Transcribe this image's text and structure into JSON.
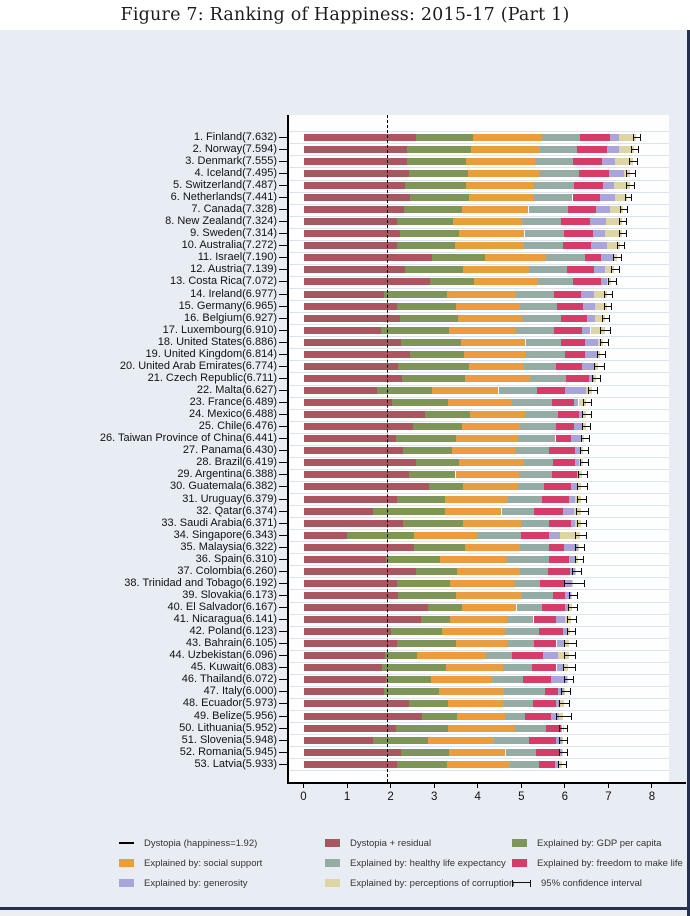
{
  "title": "Figure 7: Ranking of Happiness: 2015-17 (Part 1)",
  "colors": {
    "figure_bg": "#e8edf4",
    "plot_bg": "#fefefe",
    "axis": "#000000",
    "window_chrome": "#26304f"
  },
  "legend": {
    "columns": [
      {
        "items": [
          {
            "icon": "line",
            "color": "#000000",
            "label": "Dystopia (happiness=1.92)"
          },
          {
            "icon": "box",
            "color": "#eb9d3d",
            "label": "Explained by: social support"
          },
          {
            "icon": "box",
            "color": "#a9a5da",
            "label": "Explained by: generosity"
          }
        ]
      },
      {
        "items": [
          {
            "icon": "box",
            "color": "#a8565f",
            "label": "Dystopia + residual"
          },
          {
            "icon": "box",
            "color": "#94aca4",
            "label": "Explained by: healthy life expectancy"
          },
          {
            "icon": "box",
            "color": "#ddd6a4",
            "label": "Explained by: perceptions of corruption"
          }
        ]
      },
      {
        "items": [
          {
            "icon": "box",
            "color": "#7f9457",
            "label": "Explained by: GDP per capita"
          },
          {
            "icon": "box",
            "color": "#d63c68",
            "label": "Explained by: freedom to make life"
          },
          {
            "icon": "ci",
            "color": "#000000",
            "label": "95% confidence interval"
          }
        ]
      }
    ]
  },
  "chart_data": {
    "type": "bar",
    "orientation": "horizontal",
    "stacked": true,
    "title": "Figure 7: Ranking of Happiness: 2015-17 (Part 1)",
    "xlabel": "",
    "ylabel": "",
    "xlim": [
      0,
      8
    ],
    "x_ticks": [
      0,
      1,
      2,
      3,
      4,
      5,
      6,
      7,
      8
    ],
    "grid": "row-separators",
    "dystopia_line": 1.92,
    "ci_note": "95% confidence interval shown as error bar at bar end",
    "segment_order": [
      "dr",
      "gdp",
      "soc",
      "hle",
      "free",
      "gen",
      "corr"
    ],
    "segment_labels": {
      "dr": "Dystopia + residual",
      "gdp": "Explained by: GDP per capita",
      "soc": "Explained by: social support",
      "hle": "Explained by: healthy life expectancy",
      "free": "Explained by: freedom to make life choices",
      "gen": "Explained by: generosity",
      "corr": "Explained by: perceptions of corruption"
    },
    "segment_colors": {
      "dr": "#a8565f",
      "gdp": "#7f9457",
      "soc": "#eb9d3d",
      "hle": "#94aca4",
      "free": "#d63c68",
      "gen": "#a9a5da",
      "corr": "#ddd6a4"
    },
    "countries": [
      {
        "rank": 1,
        "name": "Finland",
        "score": 7.632,
        "ci": 0.07,
        "segments": {
          "dr": 2.585,
          "gdp": 1.305,
          "soc": 1.592,
          "hle": 0.874,
          "free": 0.681,
          "gen": 0.202,
          "corr": 0.393
        }
      },
      {
        "rank": 2,
        "name": "Norway",
        "score": 7.594,
        "ci": 0.07,
        "segments": {
          "dr": 2.383,
          "gdp": 1.456,
          "soc": 1.582,
          "hle": 0.861,
          "free": 0.686,
          "gen": 0.286,
          "corr": 0.34
        }
      },
      {
        "rank": 3,
        "name": "Denmark",
        "score": 7.555,
        "ci": 0.08,
        "segments": {
          "dr": 2.371,
          "gdp": 1.351,
          "soc": 1.59,
          "hle": 0.868,
          "free": 0.683,
          "gen": 0.284,
          "corr": 0.408
        }
      },
      {
        "rank": 4,
        "name": "Iceland",
        "score": 7.495,
        "ci": 0.09,
        "segments": {
          "dr": 2.426,
          "gdp": 1.343,
          "soc": 1.644,
          "hle": 0.914,
          "free": 0.677,
          "gen": 0.353,
          "corr": 0.138
        }
      },
      {
        "rank": 5,
        "name": "Switzerland",
        "score": 7.487,
        "ci": 0.09,
        "segments": {
          "dr": 2.318,
          "gdp": 1.42,
          "soc": 1.549,
          "hle": 0.927,
          "free": 0.66,
          "gen": 0.256,
          "corr": 0.357
        }
      },
      {
        "rank": 6,
        "name": "Netherlands",
        "score": 7.441,
        "ci": 0.06,
        "segments": {
          "dr": 2.448,
          "gdp": 1.361,
          "soc": 1.488,
          "hle": 0.878,
          "free": 0.638,
          "gen": 0.333,
          "corr": 0.295
        }
      },
      {
        "rank": 7,
        "name": "Canada",
        "score": 7.328,
        "ci": 0.07,
        "segments": {
          "dr": 2.305,
          "gdp": 1.33,
          "soc": 1.532,
          "hle": 0.896,
          "free": 0.653,
          "gen": 0.321,
          "corr": 0.291
        }
      },
      {
        "rank": 8,
        "name": "New Zealand",
        "score": 7.324,
        "ci": 0.07,
        "segments": {
          "dr": 2.156,
          "gdp": 1.268,
          "soc": 1.601,
          "hle": 0.876,
          "free": 0.669,
          "gen": 0.365,
          "corr": 0.389
        }
      },
      {
        "rank": 9,
        "name": "Sweden",
        "score": 7.314,
        "ci": 0.07,
        "segments": {
          "dr": 2.218,
          "gdp": 1.355,
          "soc": 1.501,
          "hle": 0.913,
          "free": 0.659,
          "gen": 0.285,
          "corr": 0.383
        }
      },
      {
        "rank": 10,
        "name": "Australia",
        "score": 7.272,
        "ci": 0.07,
        "segments": {
          "dr": 2.139,
          "gdp": 1.34,
          "soc": 1.573,
          "hle": 0.91,
          "free": 0.647,
          "gen": 0.361,
          "corr": 0.302
        }
      },
      {
        "rank": 11,
        "name": "Israel",
        "score": 7.19,
        "ci": 0.08,
        "segments": {
          "dr": 2.945,
          "gdp": 1.229,
          "soc": 1.396,
          "hle": 0.891,
          "free": 0.371,
          "gen": 0.276,
          "corr": 0.082
        }
      },
      {
        "rank": 12,
        "name": "Austria",
        "score": 7.139,
        "ci": 0.08,
        "segments": {
          "dr": 2.32,
          "gdp": 1.341,
          "soc": 1.504,
          "hle": 0.891,
          "free": 0.617,
          "gen": 0.242,
          "corr": 0.224
        }
      },
      {
        "rank": 13,
        "name": "Costa Rica",
        "score": 7.072,
        "ci": 0.08,
        "segments": {
          "dr": 2.91,
          "gdp": 1.01,
          "soc": 1.459,
          "hle": 0.817,
          "free": 0.632,
          "gen": 0.143,
          "corr": 0.101
        }
      },
      {
        "rank": 14,
        "name": "Ireland",
        "score": 6.977,
        "ci": 0.08,
        "segments": {
          "dr": 1.843,
          "gdp": 1.448,
          "soc": 1.583,
          "hle": 0.876,
          "free": 0.614,
          "gen": 0.307,
          "corr": 0.306
        }
      },
      {
        "rank": 15,
        "name": "Germany",
        "score": 6.965,
        "ci": 0.07,
        "segments": {
          "dr": 2.151,
          "gdp": 1.34,
          "soc": 1.474,
          "hle": 0.861,
          "free": 0.586,
          "gen": 0.273,
          "corr": 0.28
        }
      },
      {
        "rank": 16,
        "name": "Belgium",
        "score": 6.927,
        "ci": 0.07,
        "segments": {
          "dr": 2.215,
          "gdp": 1.324,
          "soc": 1.483,
          "hle": 0.894,
          "free": 0.583,
          "gen": 0.188,
          "corr": 0.24
        }
      },
      {
        "rank": 17,
        "name": "Luxembourg",
        "score": 6.91,
        "ci": 0.1,
        "segments": {
          "dr": 1.769,
          "gdp": 1.576,
          "soc": 1.52,
          "hle": 0.896,
          "free": 0.632,
          "gen": 0.196,
          "corr": 0.321
        }
      },
      {
        "rank": 18,
        "name": "United States",
        "score": 6.886,
        "ci": 0.09,
        "segments": {
          "dr": 2.227,
          "gdp": 1.398,
          "soc": 1.471,
          "hle": 0.819,
          "free": 0.547,
          "gen": 0.291,
          "corr": 0.133
        }
      },
      {
        "rank": 19,
        "name": "United Kingdom",
        "score": 6.814,
        "ci": 0.08,
        "segments": {
          "dr": 2.441,
          "gdp": 1.244,
          "soc": 1.433,
          "hle": 0.888,
          "free": 0.464,
          "gen": 0.262,
          "corr": 0.082
        }
      },
      {
        "rank": 20,
        "name": "United Arab Emirates",
        "score": 6.774,
        "ci": 0.11,
        "segments": {
          "dr": 2.17,
          "gdp": 1.626,
          "soc": 1.266,
          "hle": 0.726,
          "free": 0.608,
          "gen": 0.277,
          "corr": 0.101
        }
      },
      {
        "rank": 21,
        "name": "Czech Republic",
        "score": 6.711,
        "ci": 0.08,
        "segments": {
          "dr": 2.265,
          "gdp": 1.433,
          "soc": 1.508,
          "hle": 0.822,
          "free": 0.528,
          "gen": 0.103,
          "corr": 0.052
        }
      },
      {
        "rank": 22,
        "name": "Malta",
        "score": 6.627,
        "ci": 0.1,
        "segments": {
          "dr": 1.681,
          "gdp": 1.27,
          "soc": 1.525,
          "hle": 0.884,
          "free": 0.645,
          "gen": 0.48,
          "corr": 0.142
        }
      },
      {
        "rank": 23,
        "name": "France",
        "score": 6.489,
        "ci": 0.08,
        "segments": {
          "dr": 2.028,
          "gdp": 1.293,
          "soc": 1.466,
          "hle": 0.908,
          "free": 0.52,
          "gen": 0.098,
          "corr": 0.176
        }
      },
      {
        "rank": 24,
        "name": "Mexico",
        "score": 6.488,
        "ci": 0.09,
        "segments": {
          "dr": 2.794,
          "gdp": 1.038,
          "soc": 1.252,
          "hle": 0.761,
          "free": 0.479,
          "gen": 0.069,
          "corr": 0.095
        }
      },
      {
        "rank": 25,
        "name": "Chile",
        "score": 6.476,
        "ci": 0.09,
        "segments": {
          "dr": 2.517,
          "gdp": 1.131,
          "soc": 1.331,
          "hle": 0.808,
          "free": 0.431,
          "gen": 0.197,
          "corr": 0.061
        }
      },
      {
        "rank": 26,
        "name": "Taiwan Province of China",
        "score": 6.441,
        "ci": 0.08,
        "segments": {
          "dr": 2.127,
          "gdp": 1.365,
          "soc": 1.436,
          "hle": 0.857,
          "free": 0.351,
          "gen": 0.242,
          "corr": 0.063
        }
      },
      {
        "rank": 27,
        "name": "Panama",
        "score": 6.43,
        "ci": 0.09,
        "segments": {
          "dr": 2.291,
          "gdp": 1.112,
          "soc": 1.463,
          "hle": 0.779,
          "free": 0.597,
          "gen": 0.125,
          "corr": 0.063
        }
      },
      {
        "rank": 28,
        "name": "Brazil",
        "score": 6.419,
        "ci": 0.08,
        "segments": {
          "dr": 2.593,
          "gdp": 0.986,
          "soc": 1.474,
          "hle": 0.675,
          "free": 0.493,
          "gen": 0.11,
          "corr": 0.088
        }
      },
      {
        "rank": 29,
        "name": "Argentina",
        "score": 6.388,
        "ci": 0.09,
        "segments": {
          "dr": 2.417,
          "gdp": 1.073,
          "soc": 1.468,
          "hle": 0.744,
          "free": 0.57,
          "gen": 0.062,
          "corr": 0.054
        }
      },
      {
        "rank": 30,
        "name": "Guatemala",
        "score": 6.382,
        "ci": 0.1,
        "segments": {
          "dr": 2.87,
          "gdp": 0.781,
          "soc": 1.269,
          "hle": 0.608,
          "free": 0.604,
          "gen": 0.179,
          "corr": 0.071
        }
      },
      {
        "rank": 31,
        "name": "Uruguay",
        "score": 6.379,
        "ci": 0.09,
        "segments": {
          "dr": 2.146,
          "gdp": 1.093,
          "soc": 1.459,
          "hle": 0.771,
          "free": 0.625,
          "gen": 0.13,
          "corr": 0.155
        }
      },
      {
        "rank": 32,
        "name": "Qatar",
        "score": 6.374,
        "ci": 0.13,
        "segments": {
          "dr": 1.593,
          "gdp": 1.649,
          "soc": 1.303,
          "hle": 0.748,
          "free": 0.654,
          "gen": 0.256,
          "corr": 0.171
        }
      },
      {
        "rank": 33,
        "name": "Saudi Arabia",
        "score": 6.371,
        "ci": 0.1,
        "segments": {
          "dr": 2.285,
          "gdp": 1.379,
          "soc": 1.331,
          "hle": 0.637,
          "free": 0.509,
          "gen": 0.098,
          "corr": 0.132
        }
      },
      {
        "rank": 34,
        "name": "Singapore",
        "score": 6.343,
        "ci": 0.12,
        "segments": {
          "dr": 1.006,
          "gdp": 1.529,
          "soc": 1.451,
          "hle": 1.008,
          "free": 0.631,
          "gen": 0.261,
          "corr": 0.457
        }
      },
      {
        "rank": 35,
        "name": "Malaysia",
        "score": 6.322,
        "ci": 0.1,
        "segments": {
          "dr": 2.544,
          "gdp": 1.161,
          "soc": 1.258,
          "hle": 0.669,
          "free": 0.356,
          "gen": 0.31,
          "corr": 0.024
        }
      },
      {
        "rank": 36,
        "name": "Spain",
        "score": 6.31,
        "ci": 0.08,
        "segments": {
          "dr": 1.891,
          "gdp": 1.251,
          "soc": 1.538,
          "hle": 0.965,
          "free": 0.449,
          "gen": 0.142,
          "corr": 0.074
        }
      },
      {
        "rank": 37,
        "name": "Colombia",
        "score": 6.26,
        "ci": 0.09,
        "segments": {
          "dr": 2.573,
          "gdp": 0.96,
          "soc": 1.439,
          "hle": 0.635,
          "free": 0.52,
          "gen": 0.099,
          "corr": 0.034
        }
      },
      {
        "rank": 38,
        "name": "Trinidad and Tobago",
        "score": 6.192,
        "ci": 0.22,
        "segments": {
          "dr": 2.148,
          "gdp": 1.223,
          "soc": 1.492,
          "hle": 0.564,
          "free": 0.575,
          "gen": 0.171,
          "corr": 0.019
        }
      },
      {
        "rank": 39,
        "name": "Slovakia",
        "score": 6.173,
        "ci": 0.08,
        "segments": {
          "dr": 2.176,
          "gdp": 1.325,
          "soc": 1.505,
          "hle": 0.712,
          "free": 0.295,
          "gen": 0.136,
          "corr": 0.024
        }
      },
      {
        "rank": 40,
        "name": "El Salvador",
        "score": 6.167,
        "ci": 0.1,
        "segments": {
          "dr": 2.854,
          "gdp": 0.794,
          "soc": 1.242,
          "hle": 0.596,
          "free": 0.526,
          "gen": 0.073,
          "corr": 0.082
        }
      },
      {
        "rank": 41,
        "name": "Nicaragua",
        "score": 6.141,
        "ci": 0.1,
        "segments": {
          "dr": 2.697,
          "gdp": 0.668,
          "soc": 1.3,
          "hle": 0.615,
          "free": 0.525,
          "gen": 0.208,
          "corr": 0.128
        }
      },
      {
        "rank": 42,
        "name": "Poland",
        "score": 6.123,
        "ci": 0.08,
        "segments": {
          "dr": 2.0,
          "gdp": 1.176,
          "soc": 1.448,
          "hle": 0.781,
          "free": 0.546,
          "gen": 0.108,
          "corr": 0.064
        }
      },
      {
        "rank": 43,
        "name": "Bahrain",
        "score": 6.105,
        "ci": 0.12,
        "segments": {
          "dr": 2.142,
          "gdp": 1.366,
          "soc": 1.171,
          "hle": 0.604,
          "free": 0.525,
          "gen": 0.172,
          "corr": 0.125
        }
      },
      {
        "rank": 44,
        "name": "Uzbekistan",
        "score": 6.096,
        "ci": 0.12,
        "segments": {
          "dr": 1.877,
          "gdp": 0.719,
          "soc": 1.584,
          "hle": 0.605,
          "free": 0.724,
          "gen": 0.328,
          "corr": 0.259
        }
      },
      {
        "rank": 45,
        "name": "Kuwait",
        "score": 6.083,
        "ci": 0.12,
        "segments": {
          "dr": 1.806,
          "gdp": 1.474,
          "soc": 1.301,
          "hle": 0.675,
          "free": 0.554,
          "gen": 0.167,
          "corr": 0.106
        }
      },
      {
        "rank": 46,
        "name": "Thailand",
        "score": 6.072,
        "ci": 0.09,
        "segments": {
          "dr": 1.902,
          "gdp": 1.016,
          "soc": 1.417,
          "hle": 0.707,
          "free": 0.637,
          "gen": 0.364,
          "corr": 0.029
        }
      },
      {
        "rank": 47,
        "name": "Italy",
        "score": 6.0,
        "ci": 0.09,
        "segments": {
          "dr": 1.843,
          "gdp": 1.264,
          "soc": 1.501,
          "hle": 0.946,
          "free": 0.281,
          "gen": 0.137,
          "corr": 0.028
        }
      },
      {
        "rank": 48,
        "name": "Ecuador",
        "score": 5.973,
        "ci": 0.1,
        "segments": {
          "dr": 2.425,
          "gdp": 0.896,
          "soc": 1.265,
          "hle": 0.684,
          "free": 0.523,
          "gen": 0.099,
          "corr": 0.081
        }
      },
      {
        "rank": 49,
        "name": "Belize",
        "score": 5.956,
        "ci": 0.16,
        "segments": {
          "dr": 2.709,
          "gdp": 0.807,
          "soc": 1.101,
          "hle": 0.474,
          "free": 0.593,
          "gen": 0.183,
          "corr": 0.089
        }
      },
      {
        "rank": 50,
        "name": "Lithuania",
        "score": 5.952,
        "ci": 0.08,
        "segments": {
          "dr": 2.13,
          "gdp": 1.197,
          "soc": 1.527,
          "hle": 0.716,
          "free": 0.35,
          "gen": 0.026,
          "corr": 0.006
        }
      },
      {
        "rank": 51,
        "name": "Slovenia",
        "score": 5.948,
        "ci": 0.08,
        "segments": {
          "dr": 1.597,
          "gdp": 1.258,
          "soc": 1.523,
          "hle": 0.791,
          "free": 0.626,
          "gen": 0.137,
          "corr": 0.016
        }
      },
      {
        "rank": 52,
        "name": "Romania",
        "score": 5.945,
        "ci": 0.09,
        "segments": {
          "dr": 2.227,
          "gdp": 1.107,
          "soc": 1.303,
          "hle": 0.704,
          "free": 0.518,
          "gen": 0.082,
          "corr": 0.004
        }
      },
      {
        "rank": 53,
        "name": "Latvia",
        "score": 5.933,
        "ci": 0.08,
        "segments": {
          "dr": 2.139,
          "gdp": 1.148,
          "soc": 1.454,
          "hle": 0.671,
          "free": 0.363,
          "gen": 0.092,
          "corr": 0.066
        }
      }
    ]
  }
}
